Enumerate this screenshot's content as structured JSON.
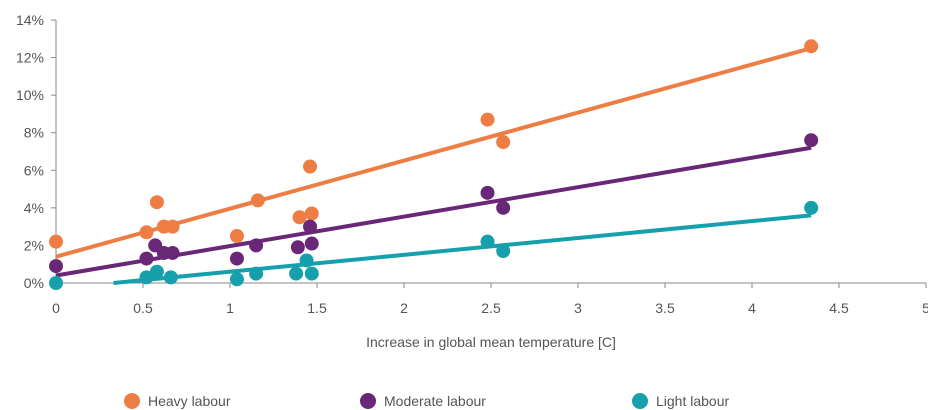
{
  "chart_data": {
    "type": "scatter",
    "xlabel": "Increase in global mean temperature [C]",
    "ylabel": "",
    "xlim": [
      0,
      5
    ],
    "ylim": [
      0,
      14
    ],
    "x_ticks": [
      {
        "value": 0,
        "label": "0"
      },
      {
        "value": 0.5,
        "label": "0.5"
      },
      {
        "value": 1,
        "label": "1"
      },
      {
        "value": 1.5,
        "label": "1.5"
      },
      {
        "value": 2,
        "label": "2"
      },
      {
        "value": 2.5,
        "label": "2.5"
      },
      {
        "value": 3,
        "label": "3"
      },
      {
        "value": 3.5,
        "label": "3.5"
      },
      {
        "value": 4,
        "label": "4"
      },
      {
        "value": 4.5,
        "label": "4.5"
      },
      {
        "value": 5,
        "label": "5"
      }
    ],
    "y_ticks": [
      {
        "value": 0,
        "label": "0%"
      },
      {
        "value": 2,
        "label": "2%"
      },
      {
        "value": 4,
        "label": "4%"
      },
      {
        "value": 6,
        "label": "6%"
      },
      {
        "value": 8,
        "label": "8%"
      },
      {
        "value": 10,
        "label": "10%"
      },
      {
        "value": 12,
        "label": "12%"
      },
      {
        "value": 14,
        "label": "14%"
      }
    ],
    "legend_position": "bottom",
    "series": [
      {
        "name": "Heavy labour",
        "color": "#ee7d44",
        "points": [
          [
            0,
            2.2
          ],
          [
            0.52,
            2.7
          ],
          [
            0.58,
            4.3
          ],
          [
            0.62,
            3.0
          ],
          [
            0.67,
            3.0
          ],
          [
            1.04,
            2.5
          ],
          [
            1.16,
            4.4
          ],
          [
            1.4,
            3.5
          ],
          [
            1.46,
            6.2
          ],
          [
            1.47,
            3.7
          ],
          [
            2.48,
            8.7
          ],
          [
            2.57,
            7.5
          ],
          [
            4.34,
            12.6
          ]
        ],
        "trend": [
          [
            0,
            1.4
          ],
          [
            4.34,
            12.5
          ]
        ]
      },
      {
        "name": "Moderate labour",
        "color": "#6a2777",
        "points": [
          [
            0,
            0.9
          ],
          [
            0.52,
            1.3
          ],
          [
            0.57,
            2.0
          ],
          [
            0.62,
            1.6
          ],
          [
            0.67,
            1.6
          ],
          [
            1.04,
            1.3
          ],
          [
            1.15,
            2.0
          ],
          [
            1.39,
            1.9
          ],
          [
            1.46,
            3.0
          ],
          [
            1.47,
            2.1
          ],
          [
            2.48,
            4.8
          ],
          [
            2.57,
            4.0
          ],
          [
            4.34,
            7.6
          ]
        ],
        "trend": [
          [
            0,
            0.4
          ],
          [
            4.34,
            7.2
          ]
        ]
      },
      {
        "name": "Light labour",
        "color": "#16a0ac",
        "points": [
          [
            0,
            0.0
          ],
          [
            0.52,
            0.3
          ],
          [
            0.58,
            0.6
          ],
          [
            0.66,
            0.3
          ],
          [
            1.04,
            0.2
          ],
          [
            1.15,
            0.5
          ],
          [
            1.38,
            0.5
          ],
          [
            1.44,
            1.2
          ],
          [
            1.47,
            0.5
          ],
          [
            2.48,
            2.2
          ],
          [
            2.57,
            1.7
          ],
          [
            4.34,
            4.0
          ]
        ],
        "trend": [
          [
            0.33,
            0.0
          ],
          [
            4.34,
            3.6
          ]
        ]
      }
    ]
  }
}
